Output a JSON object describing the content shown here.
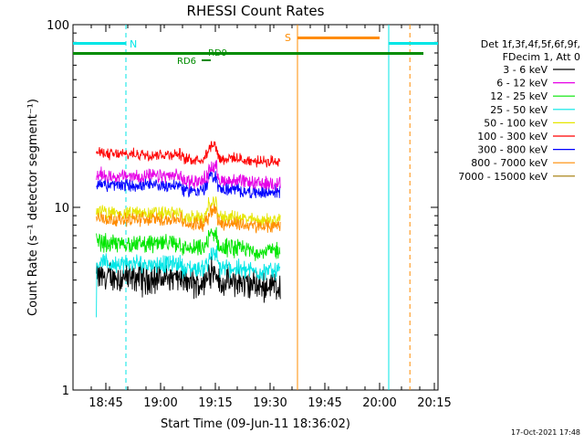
{
  "chart_data": {
    "type": "line",
    "title": "RHESSI Count Rates",
    "xlabel": "Start Time (09-Jun-11 18:36:02)",
    "ylabel": "Count Rate (s⁻¹ detector segment⁻¹)",
    "y_scale": "log",
    "ylim": [
      1,
      100
    ],
    "xlim_minutes": [
      0,
      100
    ],
    "x_ticks": [
      {
        "label": "18:45",
        "t": 9
      },
      {
        "label": "19:00",
        "t": 24
      },
      {
        "label": "19:15",
        "t": 39
      },
      {
        "label": "19:30",
        "t": 54
      },
      {
        "label": "19:45",
        "t": 69
      },
      {
        "label": "20:00",
        "t": 84
      },
      {
        "label": "20:15",
        "t": 99
      }
    ],
    "y_ticks": [
      {
        "label": "1",
        "v": 1
      },
      {
        "label": "10",
        "v": 10
      },
      {
        "label": "100",
        "v": 100
      }
    ],
    "legend_header": [
      "Det 1f,3f,4f,5f,6f,9f,",
      "FDecim 1, Att 0"
    ],
    "series": [
      {
        "name": "3 - 6 keV",
        "color": "#000000",
        "level": 4.3,
        "noise": 0.12
      },
      {
        "name": "6 - 12 keV",
        "color": "#e600e6",
        "level": 14.8,
        "noise": 0.06
      },
      {
        "name": "12 - 25 keV",
        "color": "#00e600",
        "level": 6.3,
        "noise": 0.08
      },
      {
        "name": "25 - 50 keV",
        "color": "#00e6e6",
        "level": 4.9,
        "noise": 0.08
      },
      {
        "name": "50 - 100 keV",
        "color": "#e6e600",
        "level": 9.3,
        "noise": 0.06
      },
      {
        "name": "100 - 300 keV",
        "color": "#ff0000",
        "level": 19.5,
        "noise": 0.05
      },
      {
        "name": "300 - 800 keV",
        "color": "#0000ff",
        "level": 13.2,
        "noise": 0.06
      },
      {
        "name": "800 - 7000 keV",
        "color": "#ff8c00",
        "level": 8.6,
        "noise": 0.06
      },
      {
        "name": "7000 - 15000 keV",
        "color": "#a07800",
        "level": 0,
        "noise": 0
      }
    ],
    "data_start_t": 6.4,
    "data_end_t": 56.8,
    "annotations": {
      "night": {
        "label": "N",
        "color": "#00e6e6",
        "intervals": [
          [
            -1.5,
            14.5
          ],
          [
            86.5,
            102.5
          ]
        ]
      },
      "saa": {
        "label": "S",
        "color": "#ff8c00",
        "interval": [
          61.5,
          84.0
        ]
      },
      "rd": [
        {
          "label": "RD6",
          "color": "#008c00"
        },
        {
          "label": "RD9",
          "color": "#008c00"
        }
      ]
    },
    "vertical_lines": [
      {
        "t": -1.5,
        "color": "#00e6e6",
        "dash": false
      },
      {
        "t": 14.5,
        "color": "#00e6e6",
        "dash": true
      },
      {
        "t": 61.5,
        "color": "#ff8c00",
        "dash": false
      },
      {
        "t": 86.5,
        "color": "#00e6e6",
        "dash": false
      },
      {
        "t": 92.3,
        "color": "#ff8c00",
        "dash": true
      },
      {
        "t": 102.5,
        "color": "#00e6e6",
        "dash": true
      }
    ]
  },
  "footer_date": "17-Oct-2021 17:48"
}
